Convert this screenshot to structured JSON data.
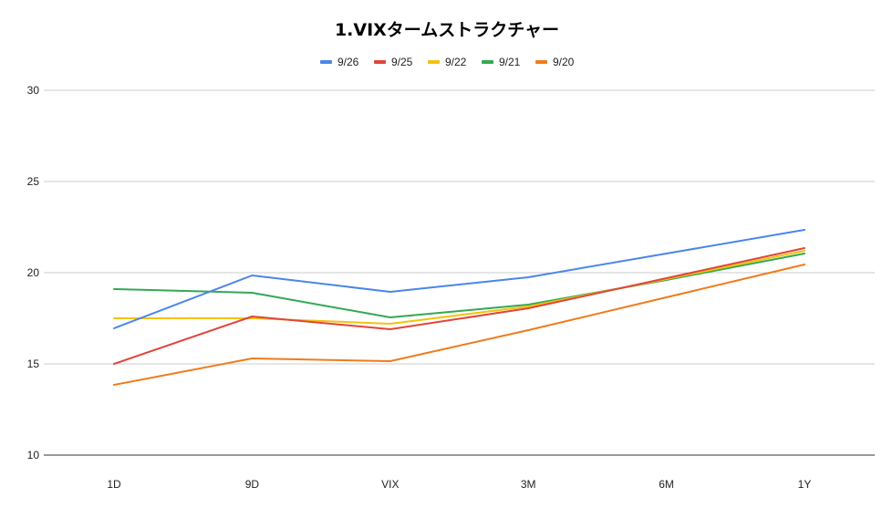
{
  "chart_data": {
    "type": "line",
    "title": "1.VIXタームストラクチャー",
    "xlabel": "",
    "ylabel": "",
    "categories": [
      "1D",
      "9D",
      "VIX",
      "3M",
      "6M",
      "1Y"
    ],
    "ylim": [
      10,
      30
    ],
    "yticks": [
      10,
      15,
      20,
      25,
      30
    ],
    "grid": true,
    "legend_position": "top",
    "series": [
      {
        "name": "9/26",
        "color": "#4a86e8",
        "values": [
          16.95,
          19.85,
          18.95,
          19.75,
          21.05,
          22.35
        ]
      },
      {
        "name": "9/25",
        "color": "#e0453a",
        "values": [
          15.0,
          17.6,
          16.9,
          18.05,
          19.7,
          21.35
        ]
      },
      {
        "name": "9/22",
        "color": "#f4c20d",
        "values": [
          17.5,
          17.5,
          17.2,
          18.15,
          19.65,
          21.2
        ]
      },
      {
        "name": "9/21",
        "color": "#34a853",
        "values": [
          19.1,
          18.9,
          17.55,
          18.25,
          19.6,
          21.05
        ]
      },
      {
        "name": "9/20",
        "color": "#f07b1a",
        "values": [
          13.85,
          15.3,
          15.15,
          16.85,
          18.65,
          20.45
        ]
      }
    ]
  }
}
